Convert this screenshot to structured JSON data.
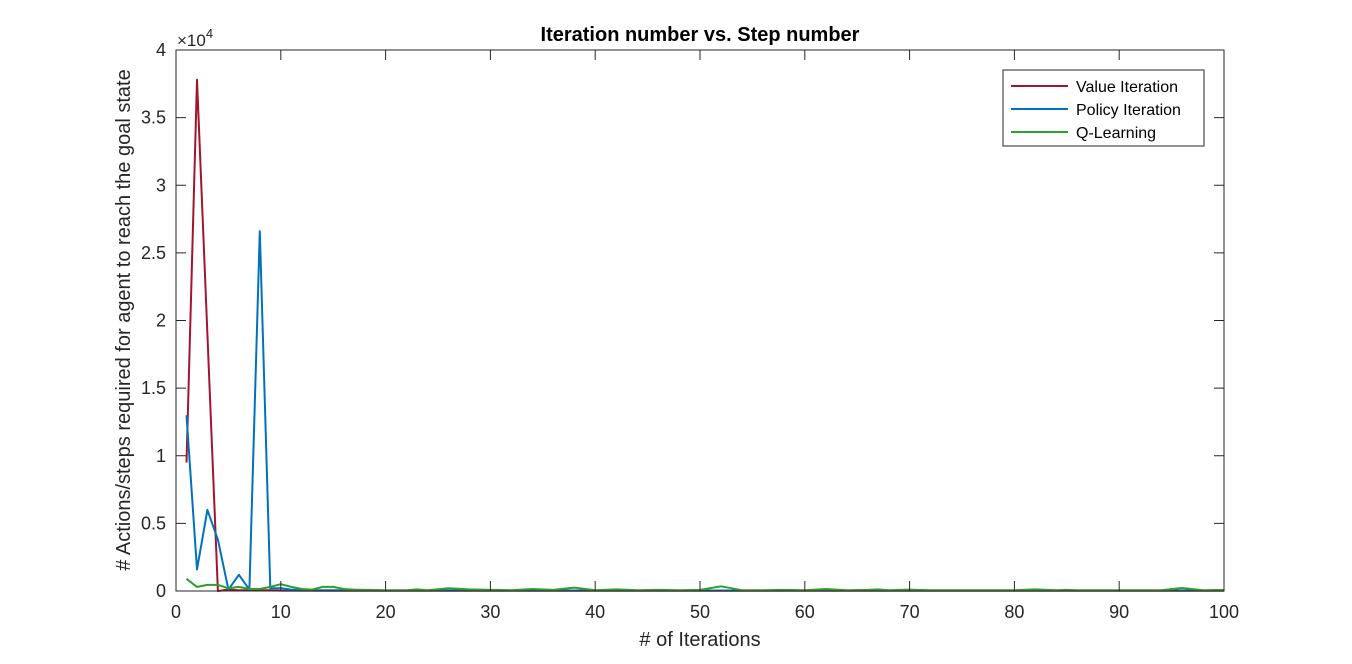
{
  "chart_data": {
    "type": "line",
    "title": "Iteration number vs. Step number",
    "xlabel": "# of Iterations",
    "ylabel": "# Actions/steps required for agent to reach the goal state",
    "y_exponent_prefix": "×10",
    "y_exponent_power": "4",
    "xlim": [
      0,
      100
    ],
    "ylim": [
      0,
      40000
    ],
    "x_ticks": [
      0,
      10,
      20,
      30,
      40,
      50,
      60,
      70,
      80,
      90,
      100
    ],
    "x_tick_labels": [
      "0",
      "10",
      "20",
      "30",
      "40",
      "50",
      "60",
      "70",
      "80",
      "90",
      "100"
    ],
    "y_ticks": [
      0,
      5000,
      10000,
      15000,
      20000,
      25000,
      30000,
      35000,
      40000
    ],
    "y_tick_labels": [
      "0",
      "0.5",
      "1",
      "1.5",
      "2",
      "2.5",
      "3",
      "3.5",
      "4"
    ],
    "grid": false,
    "legend_position": "top-right",
    "series": [
      {
        "name": "Value Iteration",
        "color": "#A2142F",
        "x": [
          1,
          2,
          3,
          4,
          5,
          6,
          7,
          8,
          9,
          10,
          15,
          20,
          30,
          40,
          50,
          60,
          70,
          80,
          90,
          100
        ],
        "y": [
          9500,
          37800,
          19000,
          0,
          100,
          50,
          50,
          50,
          50,
          30,
          20,
          20,
          20,
          20,
          20,
          20,
          20,
          20,
          20,
          20
        ]
      },
      {
        "name": "Policy Iteration",
        "color": "#0072BD",
        "x": [
          1,
          2,
          3,
          4,
          5,
          6,
          7,
          8,
          9,
          10,
          11,
          12,
          13,
          14,
          15,
          16,
          18,
          20,
          22,
          25,
          28,
          30,
          35,
          40,
          45,
          50,
          55,
          60,
          65,
          70,
          75,
          80,
          85,
          90,
          95,
          100
        ],
        "y": [
          13000,
          1600,
          6000,
          3800,
          100,
          1200,
          100,
          26600,
          200,
          200,
          100,
          80,
          60,
          60,
          50,
          50,
          40,
          40,
          40,
          40,
          40,
          40,
          40,
          40,
          40,
          40,
          40,
          40,
          40,
          40,
          40,
          40,
          40,
          40,
          40,
          40
        ]
      },
      {
        "name": "Q-Learning",
        "color": "#2CA02C",
        "x": [
          1,
          2,
          3,
          4,
          5,
          6,
          7,
          8,
          9,
          10,
          11,
          12,
          13,
          14,
          15,
          16,
          17,
          18,
          20,
          22,
          23,
          24,
          26,
          28,
          30,
          32,
          34,
          36,
          38,
          40,
          42,
          44,
          46,
          48,
          50,
          52,
          54,
          56,
          58,
          60,
          62,
          64,
          66,
          67,
          68,
          70,
          72,
          74,
          76,
          78,
          80,
          82,
          84,
          85,
          86,
          88,
          90,
          92,
          94,
          96,
          98,
          100
        ],
        "y": [
          900,
          300,
          450,
          450,
          200,
          300,
          150,
          150,
          300,
          500,
          300,
          150,
          100,
          300,
          300,
          150,
          100,
          80,
          60,
          60,
          120,
          60,
          200,
          120,
          80,
          60,
          150,
          80,
          250,
          60,
          120,
          60,
          80,
          60,
          80,
          350,
          60,
          60,
          80,
          60,
          150,
          60,
          80,
          120,
          60,
          100,
          60,
          60,
          60,
          60,
          60,
          120,
          60,
          80,
          60,
          60,
          60,
          60,
          60,
          220,
          60,
          80
        ]
      }
    ]
  }
}
